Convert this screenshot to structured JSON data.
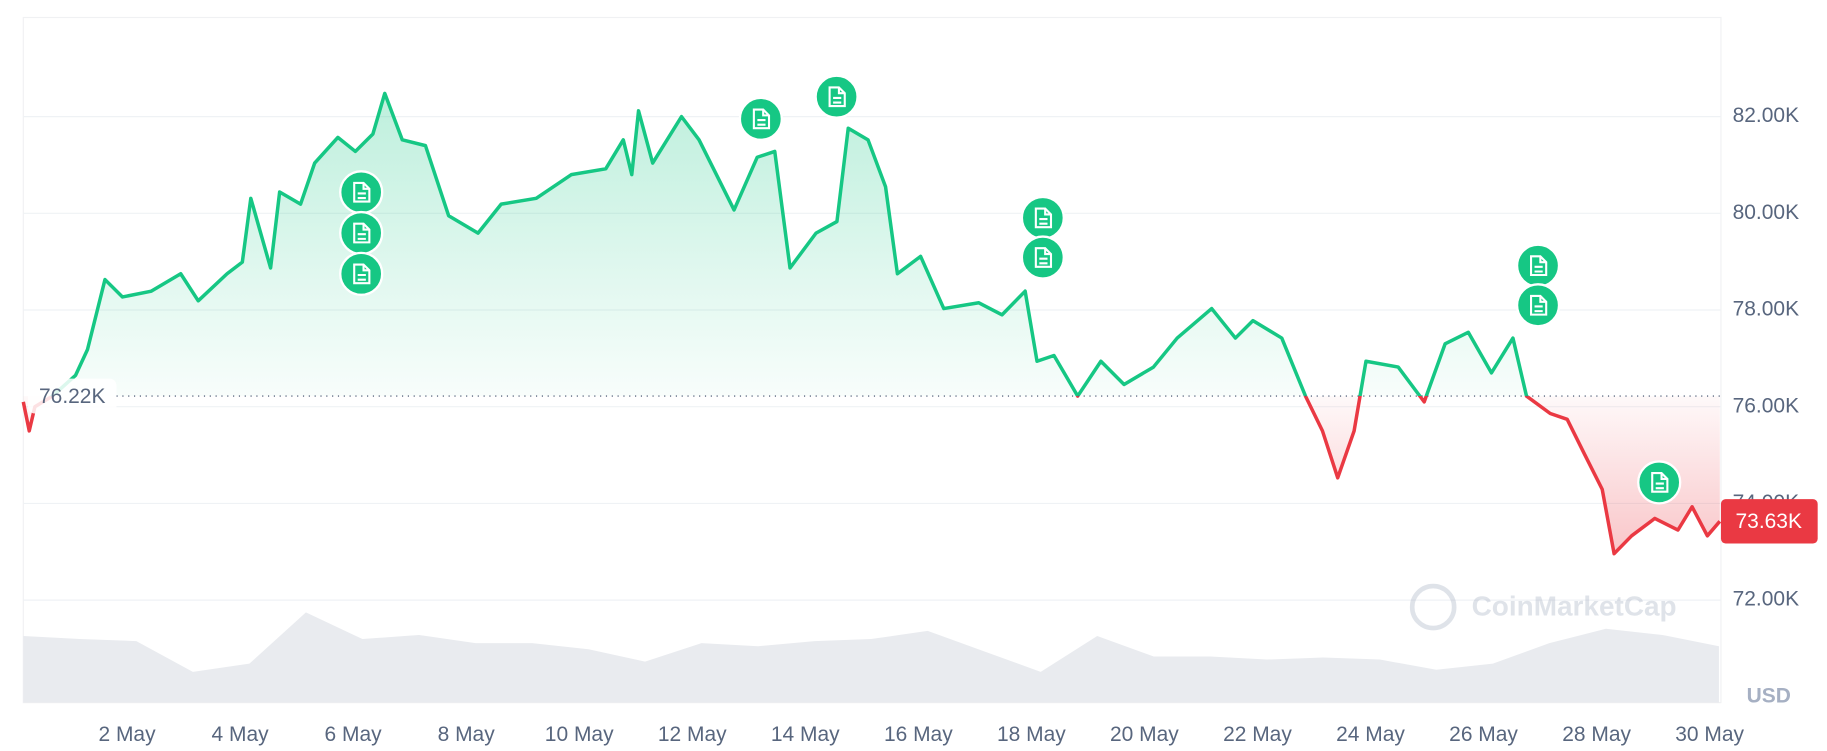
{
  "chart_data": {
    "type": "line",
    "currency": "USD",
    "colors": {
      "up": "#16c784",
      "down": "#ea3943"
    },
    "baseline": {
      "value": 76220,
      "label": "76.22K"
    },
    "current": {
      "value": 73630,
      "label": "73.63K"
    },
    "x": [
      0.165,
      0.27,
      0.37,
      0.68,
      1.09,
      1.3,
      1.61,
      1.92,
      2.43,
      2.95,
      3.26,
      3.77,
      4.04,
      4.19,
      4.54,
      4.7,
      5.07,
      5.32,
      5.73,
      6.04,
      6.35,
      6.56,
      6.87,
      7.28,
      7.69,
      8.21,
      8.62,
      9.24,
      9.86,
      10.47,
      10.78,
      10.93,
      11.05,
      11.3,
      11.81,
      12.12,
      12.74,
      13.15,
      13.46,
      13.73,
      14.19,
      14.56,
      14.76,
      15.11,
      15.42,
      15.63,
      16.04,
      16.45,
      17.07,
      17.48,
      17.89,
      18.1,
      18.4,
      18.82,
      19.23,
      19.64,
      20.16,
      20.58,
      21.19,
      21.61,
      21.92,
      22.43,
      22.85,
      23.15,
      23.42,
      23.71,
      23.92,
      24.49,
      24.95,
      25.32,
      25.73,
      26.14,
      26.52,
      26.76,
      27.18,
      27.48,
      27.79,
      28.1,
      28.31,
      28.62,
      29.03,
      29.44,
      29.69,
      29.96,
      30.18
    ],
    "values": [
      76100,
      75500,
      76000,
      76220,
      76650,
      77180,
      78630,
      78270,
      78390,
      78750,
      78190,
      78750,
      78990,
      80310,
      78870,
      80440,
      80190,
      81040,
      81570,
      81280,
      81640,
      82480,
      81520,
      81400,
      79950,
      79590,
      80190,
      80310,
      80800,
      80920,
      81520,
      80800,
      82120,
      81040,
      82000,
      81520,
      80070,
      81160,
      81280,
      78870,
      79590,
      79830,
      81760,
      81520,
      80550,
      78750,
      79110,
      78030,
      78150,
      77900,
      78390,
      76940,
      77060,
      76220,
      76940,
      76460,
      76820,
      77420,
      78030,
      77420,
      77780,
      77420,
      76220,
      75500,
      74530,
      75500,
      76940,
      76820,
      76100,
      77300,
      77540,
      76700,
      77420,
      76220,
      75860,
      75740,
      75010,
      74290,
      72960,
      73330,
      73690,
      73450,
      73930,
      73330,
      73630
    ],
    "xlim": [
      0.165,
      30.18
    ],
    "ylim": [
      69880,
      84050
    ],
    "xticks": [
      {
        "value": 2,
        "label": "2 May"
      },
      {
        "value": 4,
        "label": "4 May"
      },
      {
        "value": 6,
        "label": "6 May"
      },
      {
        "value": 8,
        "label": "8 May"
      },
      {
        "value": 10,
        "label": "10 May"
      },
      {
        "value": 12,
        "label": "12 May"
      },
      {
        "value": 14,
        "label": "14 May"
      },
      {
        "value": 16,
        "label": "16 May"
      },
      {
        "value": 18,
        "label": "18 May"
      },
      {
        "value": 20,
        "label": "20 May"
      },
      {
        "value": 22,
        "label": "22 May"
      },
      {
        "value": 24,
        "label": "24 May"
      },
      {
        "value": 26,
        "label": "26 May"
      },
      {
        "value": 28,
        "label": "28 May"
      },
      {
        "value": 30,
        "label": "30 May"
      }
    ],
    "yticks": [
      {
        "value": 72000,
        "label": "72.00K"
      },
      {
        "value": 74000,
        "label": "74.00K"
      },
      {
        "value": 76000,
        "label": "76.00K"
      },
      {
        "value": 78000,
        "label": "78.00K"
      },
      {
        "value": 80000,
        "label": "80.00K"
      },
      {
        "value": 82000,
        "label": "82.00K"
      }
    ],
    "grid": true,
    "volume": {
      "x": [
        0.165,
        1.165,
        2.165,
        3.165,
        4.165,
        5.165,
        6.165,
        7.165,
        8.165,
        9.165,
        10.165,
        11.165,
        12.165,
        13.165,
        14.165,
        15.165,
        16.165,
        17.165,
        18.165,
        19.165,
        20.165,
        21.165,
        22.165,
        23.165,
        24.165,
        25.165,
        26.165,
        27.165,
        28.165,
        29.165,
        30.165
      ],
      "values": [
        65,
        62,
        60,
        30,
        38,
        88,
        62,
        66,
        58,
        58,
        52,
        40,
        58,
        55,
        60,
        62,
        70,
        50,
        30,
        65,
        45,
        45,
        42,
        44,
        42,
        32,
        38,
        58,
        72,
        66,
        55
      ],
      "ylim": [
        0,
        100
      ],
      "color": "#e9ebef"
    }
  },
  "watermark": "CoinMarketCap"
}
